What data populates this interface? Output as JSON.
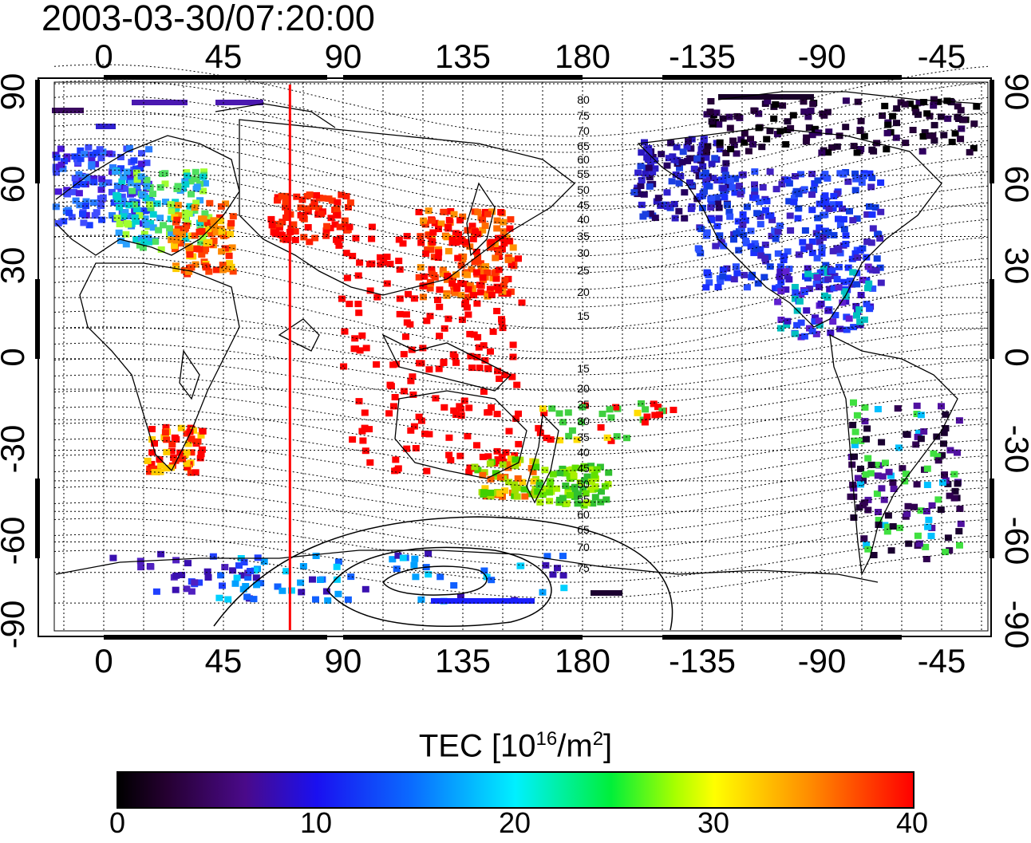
{
  "timestamp": "2003-03-30/07:20:00",
  "map": {
    "lon_ticks": [
      "0",
      "45",
      "90",
      "135",
      "180",
      "-135",
      "-90",
      "-45"
    ],
    "lat_ticks": [
      "90",
      "60",
      "30",
      "0",
      "-30",
      "-60",
      "-90"
    ],
    "contour_labels_north": [
      "80",
      "75",
      "70",
      "65",
      "60",
      "55",
      "50",
      "45",
      "40",
      "35",
      "30",
      "25",
      "20",
      "15"
    ],
    "contour_labels_south": [
      "15",
      "20",
      "25",
      "30",
      "35",
      "40",
      "45",
      "50",
      "55",
      "60",
      "65",
      "70",
      "75"
    ],
    "marker_longitude_deg": 70,
    "marker_color": "#ff0000"
  },
  "colorbar": {
    "title_prefix": "TEC  [10",
    "title_exp1": "16",
    "title_mid": "/m",
    "title_exp2": "2",
    "title_suffix": "]",
    "tick_labels": [
      "0",
      "10",
      "20",
      "30",
      "40"
    ],
    "range": [
      0,
      40
    ]
  }
}
